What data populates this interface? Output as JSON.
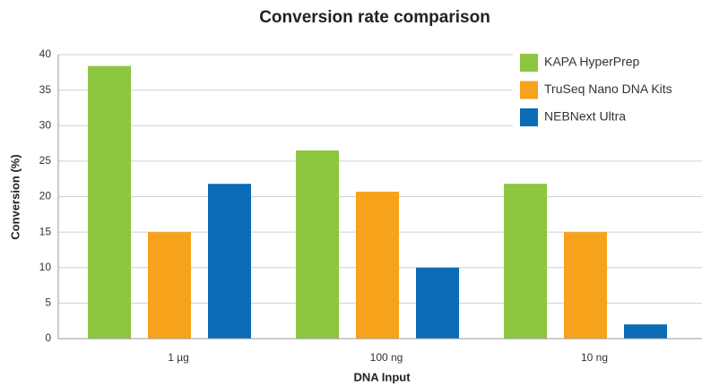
{
  "chart_data": {
    "type": "bar",
    "title": "Conversion rate comparison",
    "x_label": "DNA Input",
    "y_label": "Conversion (%)",
    "categories": [
      "1 µg",
      "100 ng",
      "10 ng"
    ],
    "series": [
      {
        "name": "KAPA HyperPrep",
        "color": "#8dc63f",
        "values": [
          38.4,
          26.5,
          21.8
        ]
      },
      {
        "name": "TruSeq Nano DNA Kits",
        "color": "#f7a21b",
        "values": [
          15.0,
          20.7,
          15.0
        ]
      },
      {
        "name": "NEBNext Ultra",
        "color": "#0b6bb5",
        "values": [
          21.8,
          10.0,
          2.0
        ]
      }
    ],
    "ylim": [
      0,
      40
    ],
    "yticks": [
      0,
      5,
      10,
      15,
      20,
      25,
      30,
      35,
      40
    ],
    "grid": true,
    "legend": "top-right"
  }
}
